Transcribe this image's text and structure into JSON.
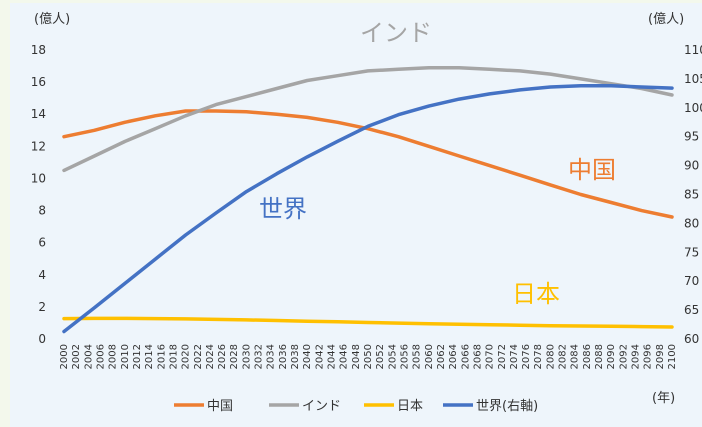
{
  "chart_data": {
    "type": "line",
    "left_axis_label": "(億人)",
    "right_axis_label": "(億人)",
    "x_axis_unit": "(年)",
    "left_axis": {
      "min": 0,
      "max": 18,
      "ticks": [
        0,
        2,
        4,
        6,
        8,
        10,
        12,
        14,
        16,
        18
      ]
    },
    "right_axis": {
      "min": 60,
      "max": 110,
      "ticks": [
        60,
        65,
        70,
        75,
        80,
        85,
        90,
        95,
        100,
        105,
        110
      ],
      "tick_labels": [
        "60",
        "65",
        "70",
        "75",
        "80",
        "85",
        "90",
        "95",
        "100",
        "105",
        "110"
      ]
    },
    "x_ticks": [
      "2000",
      "2002",
      "2004",
      "2006",
      "2008",
      "2010",
      "2012",
      "2014",
      "2016",
      "2018",
      "2020",
      "2022",
      "2024",
      "2026",
      "2028",
      "2030",
      "2032",
      "2034",
      "2036",
      "2038",
      "2040",
      "2042",
      "2044",
      "2046",
      "2048",
      "2050",
      "2052",
      "2054",
      "2056",
      "2058",
      "2060",
      "2062",
      "2064",
      "2066",
      "2068",
      "2070",
      "2072",
      "2074",
      "2076",
      "2078",
      "2080",
      "2082",
      "2084",
      "2086",
      "2088",
      "2090",
      "2092",
      "2094",
      "2096",
      "2098",
      "2100"
    ],
    "series": [
      {
        "name": "中国",
        "label": "中国",
        "axis": "left",
        "color": "#ed7d31",
        "points": [
          [
            2000,
            12.6
          ],
          [
            2005,
            13.0
          ],
          [
            2010,
            13.5
          ],
          [
            2015,
            13.9
          ],
          [
            2020,
            14.2
          ],
          [
            2025,
            14.2
          ],
          [
            2030,
            14.15
          ],
          [
            2035,
            14.0
          ],
          [
            2040,
            13.8
          ],
          [
            2045,
            13.5
          ],
          [
            2050,
            13.1
          ],
          [
            2055,
            12.6
          ],
          [
            2060,
            12.0
          ],
          [
            2065,
            11.4
          ],
          [
            2070,
            10.8
          ],
          [
            2075,
            10.2
          ],
          [
            2080,
            9.6
          ],
          [
            2085,
            9.0
          ],
          [
            2090,
            8.5
          ],
          [
            2095,
            8.0
          ],
          [
            2100,
            7.6
          ]
        ]
      },
      {
        "name": "インド",
        "label": "インド",
        "axis": "left",
        "color": "#a5a5a5",
        "points": [
          [
            2000,
            10.5
          ],
          [
            2005,
            11.4
          ],
          [
            2010,
            12.3
          ],
          [
            2015,
            13.1
          ],
          [
            2020,
            13.9
          ],
          [
            2025,
            14.6
          ],
          [
            2030,
            15.1
          ],
          [
            2035,
            15.6
          ],
          [
            2040,
            16.1
          ],
          [
            2045,
            16.4
          ],
          [
            2050,
            16.7
          ],
          [
            2055,
            16.8
          ],
          [
            2060,
            16.9
          ],
          [
            2065,
            16.9
          ],
          [
            2070,
            16.8
          ],
          [
            2075,
            16.7
          ],
          [
            2080,
            16.5
          ],
          [
            2085,
            16.2
          ],
          [
            2090,
            15.9
          ],
          [
            2095,
            15.6
          ],
          [
            2100,
            15.2
          ]
        ]
      },
      {
        "name": "日本",
        "label": "日本",
        "axis": "left",
        "color": "#ffc000",
        "points": [
          [
            2000,
            1.27
          ],
          [
            2005,
            1.28
          ],
          [
            2010,
            1.28
          ],
          [
            2015,
            1.27
          ],
          [
            2020,
            1.25
          ],
          [
            2025,
            1.22
          ],
          [
            2030,
            1.19
          ],
          [
            2035,
            1.15
          ],
          [
            2040,
            1.11
          ],
          [
            2045,
            1.07
          ],
          [
            2050,
            1.03
          ],
          [
            2055,
            0.99
          ],
          [
            2060,
            0.95
          ],
          [
            2065,
            0.92
          ],
          [
            2070,
            0.89
          ],
          [
            2075,
            0.86
          ],
          [
            2080,
            0.83
          ],
          [
            2085,
            0.81
          ],
          [
            2090,
            0.79
          ],
          [
            2095,
            0.77
          ],
          [
            2100,
            0.75
          ]
        ]
      },
      {
        "name": "世界(右軸)",
        "label": "世界",
        "axis": "right",
        "color": "#4472c4",
        "points": [
          [
            2000,
            61.3
          ],
          [
            2005,
            65.4
          ],
          [
            2010,
            69.6
          ],
          [
            2015,
            73.8
          ],
          [
            2020,
            78.0
          ],
          [
            2025,
            81.8
          ],
          [
            2030,
            85.5
          ],
          [
            2035,
            88.6
          ],
          [
            2040,
            91.5
          ],
          [
            2045,
            94.2
          ],
          [
            2050,
            96.8
          ],
          [
            2055,
            98.8
          ],
          [
            2060,
            100.3
          ],
          [
            2065,
            101.5
          ],
          [
            2070,
            102.4
          ],
          [
            2075,
            103.1
          ],
          [
            2080,
            103.6
          ],
          [
            2085,
            103.8
          ],
          [
            2090,
            103.8
          ],
          [
            2095,
            103.6
          ],
          [
            2100,
            103.4
          ]
        ]
      }
    ]
  }
}
